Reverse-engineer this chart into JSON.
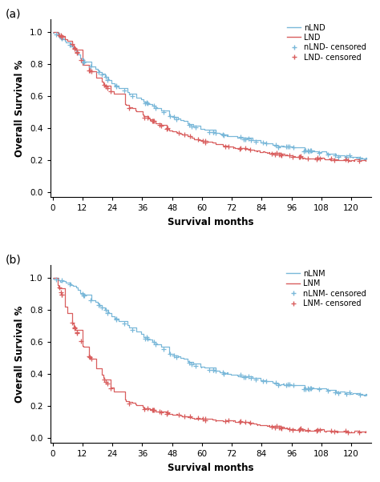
{
  "panel_a": {
    "title_label": "(a)",
    "blue_label": "nLND",
    "red_label": "LND",
    "blue_censored_label": "nLND- censored",
    "red_censored_label": "LND- censored",
    "blue_color": "#7ab8d9",
    "red_color": "#d95f5f",
    "xlabel": "Survival months",
    "ylabel": "Overall Survival %",
    "xlim": [
      -1,
      128
    ],
    "ylim": [
      -0.03,
      1.08
    ],
    "xticks": [
      0,
      12,
      24,
      36,
      48,
      60,
      72,
      84,
      96,
      108,
      120
    ],
    "yticks": [
      0.0,
      0.2,
      0.4,
      0.6,
      0.8,
      1.0
    ],
    "blue_ctrl_t": [
      0,
      3,
      6,
      9,
      12,
      18,
      24,
      30,
      36,
      42,
      48,
      54,
      60,
      66,
      72,
      78,
      84,
      90,
      96,
      102,
      108,
      114,
      120,
      126
    ],
    "blue_ctrl_s": [
      1.0,
      0.96,
      0.93,
      0.88,
      0.82,
      0.76,
      0.68,
      0.62,
      0.57,
      0.52,
      0.47,
      0.43,
      0.39,
      0.37,
      0.35,
      0.33,
      0.31,
      0.29,
      0.28,
      0.26,
      0.25,
      0.23,
      0.22,
      0.21
    ],
    "red_ctrl_t": [
      0,
      2,
      5,
      8,
      12,
      18,
      24,
      30,
      36,
      42,
      48,
      54,
      60,
      66,
      72,
      78,
      84,
      90,
      96,
      102,
      108,
      114,
      120,
      126
    ],
    "red_ctrl_s": [
      1.0,
      0.98,
      0.96,
      0.92,
      0.8,
      0.71,
      0.62,
      0.54,
      0.48,
      0.43,
      0.38,
      0.35,
      0.32,
      0.3,
      0.28,
      0.27,
      0.25,
      0.24,
      0.23,
      0.21,
      0.21,
      0.2,
      0.2,
      0.2
    ]
  },
  "panel_b": {
    "title_label": "(b)",
    "blue_label": "nLNM",
    "red_label": "LNM",
    "blue_censored_label": "nLNM- censored",
    "red_censored_label": "LNM- censored",
    "blue_color": "#7ab8d9",
    "red_color": "#d95f5f",
    "xlabel": "Survival months",
    "ylabel": "Overall Survival %",
    "xlim": [
      -1,
      128
    ],
    "ylim": [
      -0.03,
      1.08
    ],
    "xticks": [
      0,
      12,
      24,
      36,
      48,
      60,
      72,
      84,
      96,
      108,
      120
    ],
    "yticks": [
      0.0,
      0.2,
      0.4,
      0.6,
      0.8,
      1.0
    ],
    "blue_ctrl_t": [
      0,
      3,
      6,
      9,
      12,
      18,
      24,
      30,
      36,
      42,
      48,
      54,
      60,
      66,
      72,
      78,
      84,
      90,
      96,
      102,
      108,
      114,
      120,
      126
    ],
    "blue_ctrl_s": [
      1.0,
      0.98,
      0.97,
      0.94,
      0.9,
      0.84,
      0.76,
      0.7,
      0.64,
      0.58,
      0.52,
      0.48,
      0.44,
      0.42,
      0.4,
      0.38,
      0.36,
      0.34,
      0.33,
      0.31,
      0.31,
      0.29,
      0.28,
      0.27
    ],
    "red_ctrl_t": [
      0,
      2,
      4,
      6,
      9,
      12,
      15,
      18,
      21,
      24,
      30,
      36,
      42,
      48,
      54,
      60,
      66,
      72,
      78,
      84,
      90,
      96,
      102,
      108,
      114,
      120,
      126
    ],
    "red_ctrl_s": [
      1.0,
      0.96,
      0.88,
      0.78,
      0.68,
      0.58,
      0.5,
      0.43,
      0.36,
      0.3,
      0.23,
      0.19,
      0.17,
      0.15,
      0.13,
      0.12,
      0.11,
      0.11,
      0.1,
      0.08,
      0.07,
      0.06,
      0.05,
      0.05,
      0.04,
      0.04,
      0.04
    ]
  }
}
